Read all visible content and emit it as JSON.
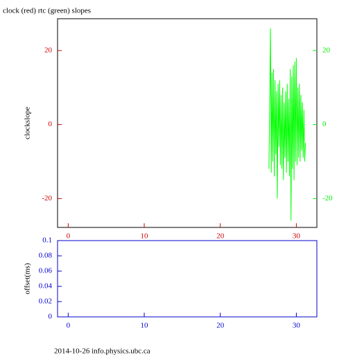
{
  "chart_data": [
    {
      "type": "line",
      "title": "clock (red) rtc (green) slopes",
      "ylabel": "clockslope",
      "xlim": [
        -1.4,
        32.7
      ],
      "xticks": [
        0,
        10,
        20,
        30
      ],
      "xtick_color": "#cc0000",
      "ylim": [
        -27.8,
        28.6
      ],
      "yticks": [
        -20,
        0,
        20
      ],
      "ytick_color": "#cc0000",
      "y2lim": [
        -27.8,
        28.6
      ],
      "y2ticks": [
        -20,
        0,
        20
      ],
      "y2tick_color": "#00ee00",
      "x": [
        26.4,
        26.5,
        26.6,
        26.7,
        26.8,
        26.9,
        27.0,
        27.1,
        27.2,
        27.3,
        27.4,
        27.5,
        27.6,
        27.7,
        27.8,
        27.9,
        28.0,
        28.1,
        28.2,
        28.3,
        28.4,
        28.5,
        28.6,
        28.7,
        28.8,
        28.9,
        29.0,
        29.1,
        29.2,
        29.3,
        29.4,
        29.5,
        29.6,
        29.7,
        29.8,
        29.9,
        30.0,
        30.1,
        30.2,
        30.3,
        30.4,
        30.5,
        30.6,
        30.7,
        30.8,
        30.9,
        31.0,
        31.1,
        31.2
      ],
      "series": [
        {
          "color": "#00ff00",
          "axis": "y2",
          "values": [
            -12,
            7,
            26,
            -13,
            14,
            -10,
            15,
            -14,
            12,
            -8,
            9,
            -20,
            11,
            -6,
            12,
            -11,
            8,
            -12,
            10,
            -15,
            6,
            -9,
            9,
            -13,
            11,
            -10,
            7,
            -14,
            15,
            -26,
            13,
            -12,
            16,
            -15,
            17,
            -10,
            18,
            -11,
            10,
            -9,
            11,
            -10,
            8,
            -7,
            6,
            -9,
            4,
            -10,
            -5
          ]
        }
      ]
    },
    {
      "type": "line",
      "ylabel": "offset(ms)",
      "xlim": [
        -1.4,
        32.7
      ],
      "xticks": [
        0,
        10,
        20,
        30
      ],
      "xtick_color": "#0000cc",
      "ylim": [
        0,
        0.1
      ],
      "yticks": [
        0,
        0.02,
        0.04,
        0.06,
        0.08,
        0.1
      ],
      "ytick_color": "#0000cc",
      "x": [],
      "series": []
    }
  ],
  "footer": "2014-10-26 info.physics.ubc.ca"
}
